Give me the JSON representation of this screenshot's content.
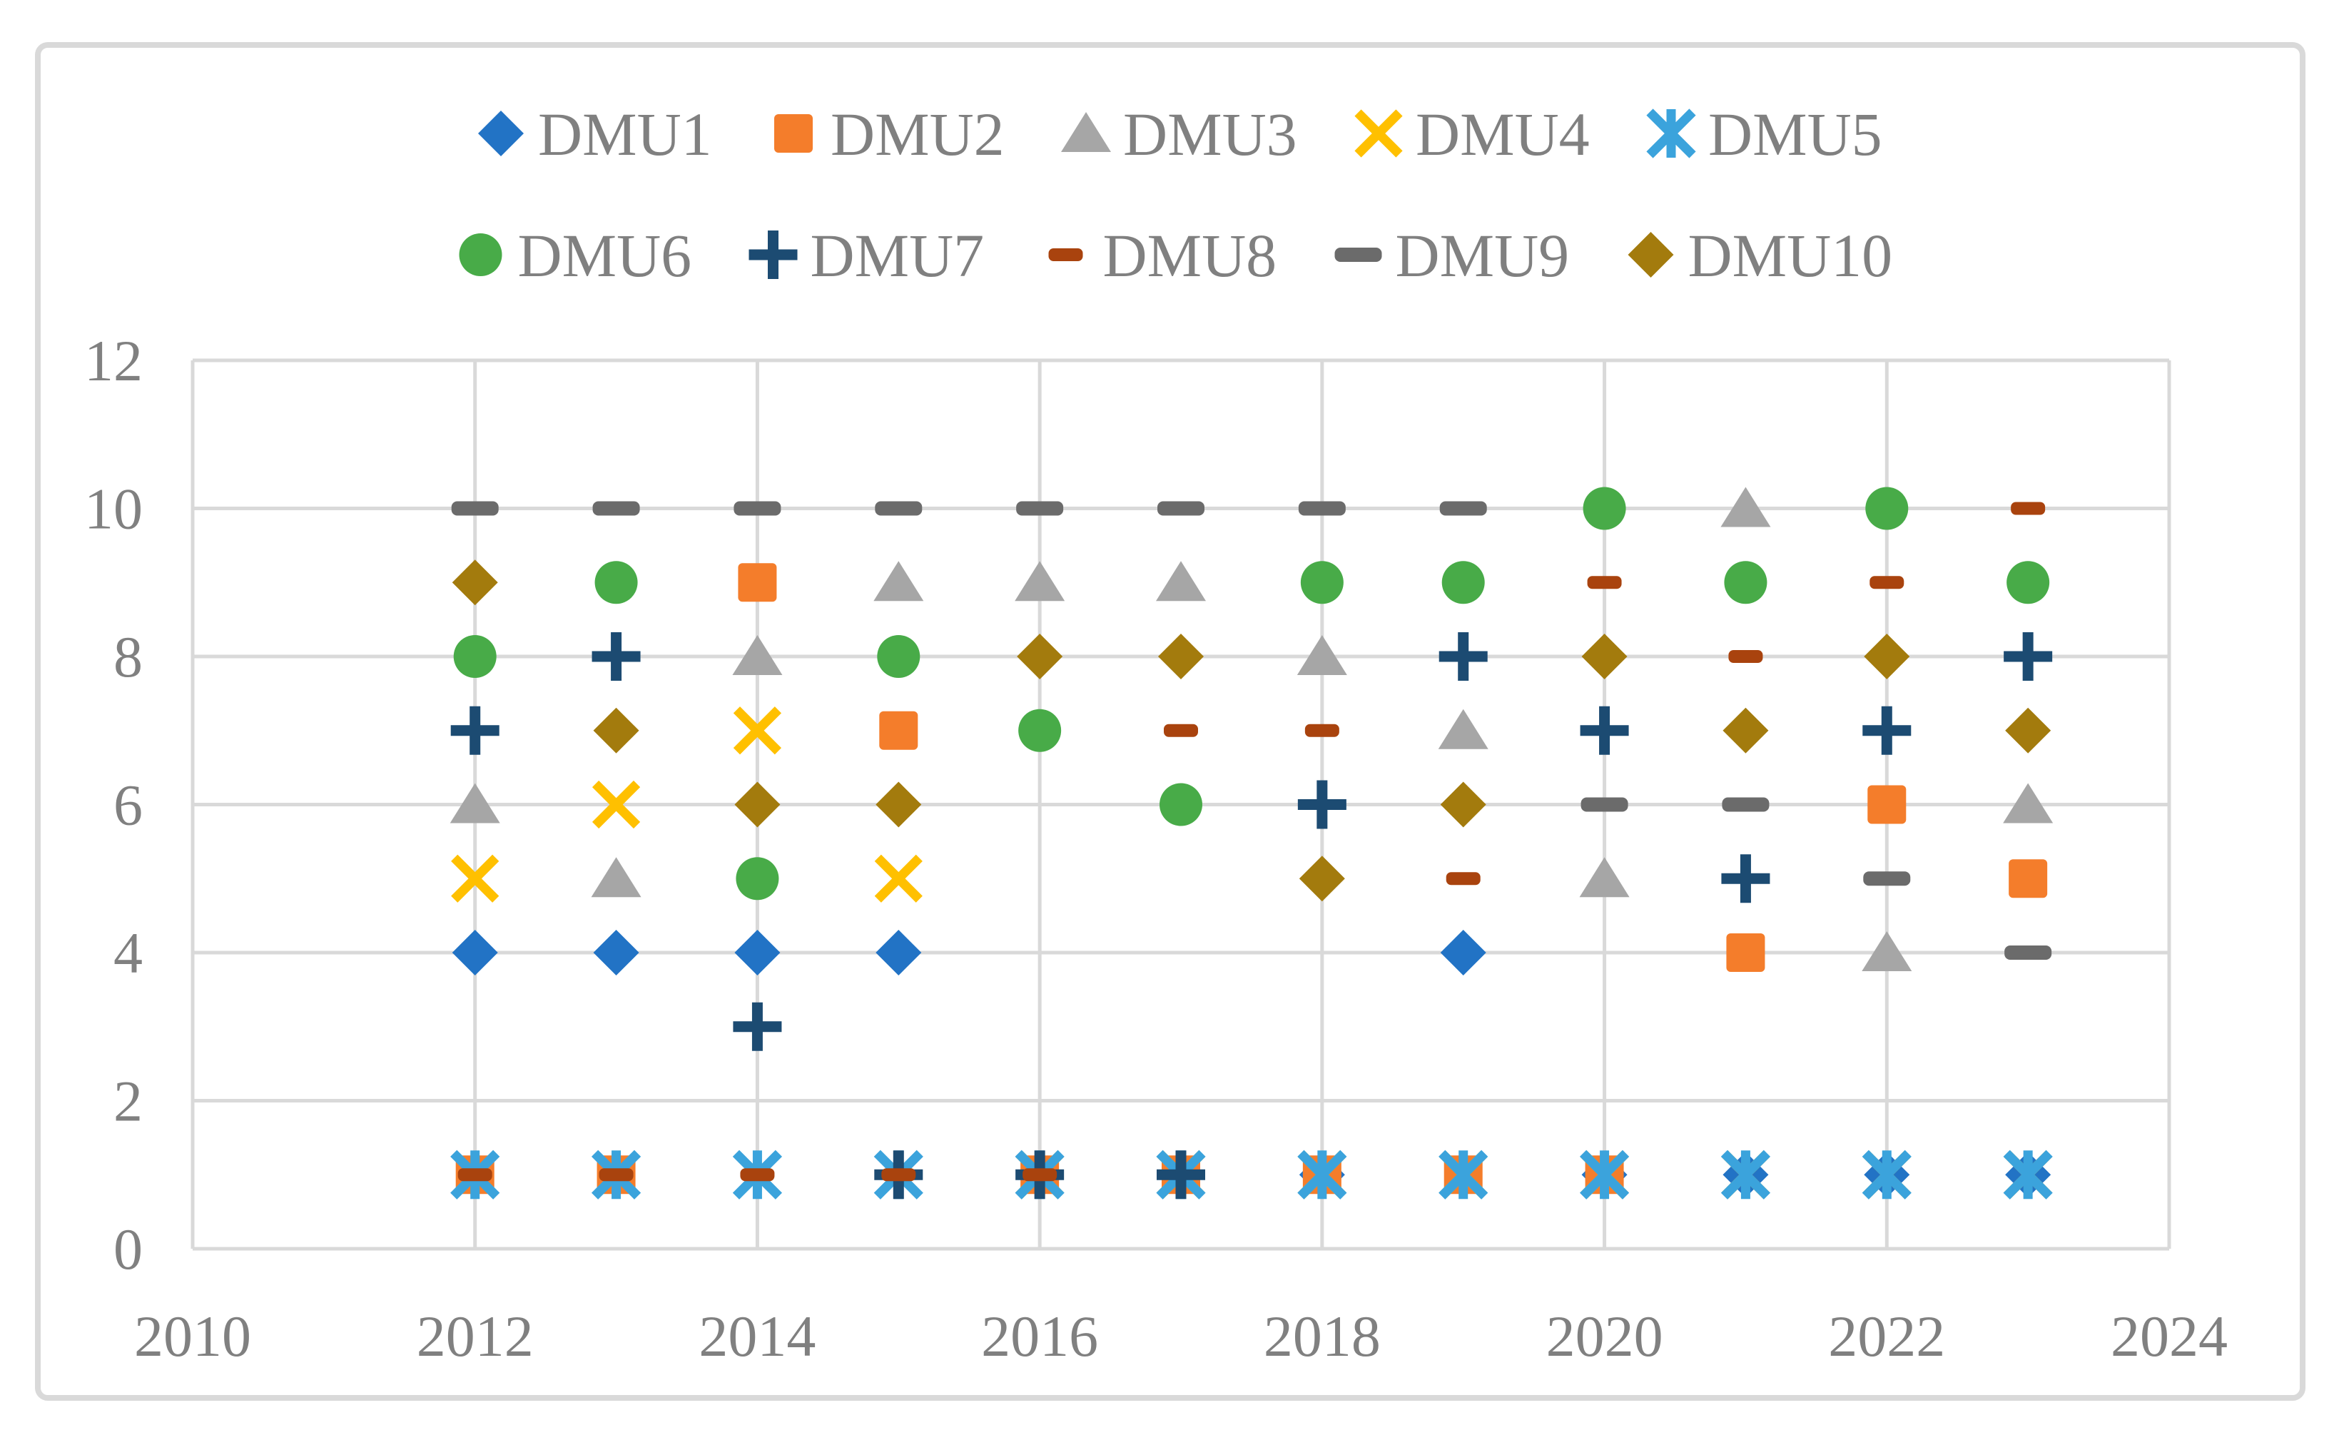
{
  "chart_data": {
    "type": "scatter",
    "title": "",
    "xlabel": "",
    "ylabel": "",
    "x_years": [
      2012,
      2013,
      2014,
      2015,
      2016,
      2017,
      2018,
      2019,
      2020,
      2021,
      2022,
      2023
    ],
    "series": [
      {
        "name": "DMU1",
        "marker": "diamond",
        "color": "#2273C5",
        "values": [
          4,
          4,
          4,
          4,
          1,
          1,
          1,
          4,
          1,
          1,
          1,
          1
        ]
      },
      {
        "name": "DMU2",
        "marker": "square",
        "color": "#F47D2B",
        "values": [
          1,
          1,
          9,
          7,
          1,
          1,
          1,
          1,
          1,
          4,
          6,
          5
        ]
      },
      {
        "name": "DMU3",
        "marker": "triangle",
        "color": "#A6A6A6",
        "values": [
          6,
          5,
          8,
          9,
          9,
          9,
          8,
          7,
          5,
          10,
          4,
          6
        ]
      },
      {
        "name": "DMU4",
        "marker": "x",
        "color": "#FFC000",
        "values": [
          5,
          6,
          7,
          5,
          1,
          1,
          1,
          1,
          1,
          1,
          1,
          1
        ]
      },
      {
        "name": "DMU5",
        "marker": "asterisk",
        "color": "#3BA3DC",
        "values": [
          1,
          1,
          1,
          1,
          1,
          1,
          1,
          1,
          1,
          1,
          1,
          1
        ]
      },
      {
        "name": "DMU6",
        "marker": "circle",
        "color": "#48AB48",
        "values": [
          8,
          9,
          5,
          8,
          7,
          6,
          9,
          9,
          10,
          9,
          10,
          9
        ]
      },
      {
        "name": "DMU7",
        "marker": "plus",
        "color": "#1C4B72",
        "values": [
          7,
          8,
          3,
          1,
          1,
          1,
          6,
          8,
          7,
          5,
          7,
          8
        ]
      },
      {
        "name": "DMU8",
        "marker": "dash",
        "color": "#A9430E",
        "values": [
          1,
          1,
          1,
          1,
          1,
          7,
          7,
          5,
          9,
          8,
          9,
          10
        ]
      },
      {
        "name": "DMU9",
        "marker": "long-dash",
        "color": "#6B6B6B",
        "values": [
          10,
          10,
          10,
          10,
          10,
          10,
          10,
          10,
          6,
          6,
          5,
          4
        ]
      },
      {
        "name": "DMU10",
        "marker": "diamond",
        "color": "#A37B0D",
        "values": [
          9,
          7,
          6,
          6,
          8,
          8,
          5,
          6,
          8,
          7,
          8,
          7
        ]
      }
    ],
    "axes": {
      "xlim": [
        2010,
        2024
      ],
      "ylim": [
        0,
        12
      ],
      "xticks": [
        "2010",
        "2012",
        "2014",
        "2016",
        "2018",
        "2020",
        "2022",
        "2024"
      ],
      "yticks": [
        "0",
        "2",
        "4",
        "6",
        "8",
        "10",
        "12"
      ],
      "grid": true,
      "gridline_color": "#D9D9D9",
      "tick_label_color": "#808080"
    },
    "legend": {
      "position": "top-center",
      "rows": [
        [
          "DMU1",
          "DMU2",
          "DMU3",
          "DMU4",
          "DMU5"
        ],
        [
          "DMU6",
          "DMU7",
          "DMU8",
          "DMU9",
          "DMU10"
        ]
      ],
      "label_color": "#808080"
    },
    "frame": {
      "border_color": "#D9D9D9",
      "background": "#FFFFFF"
    }
  }
}
